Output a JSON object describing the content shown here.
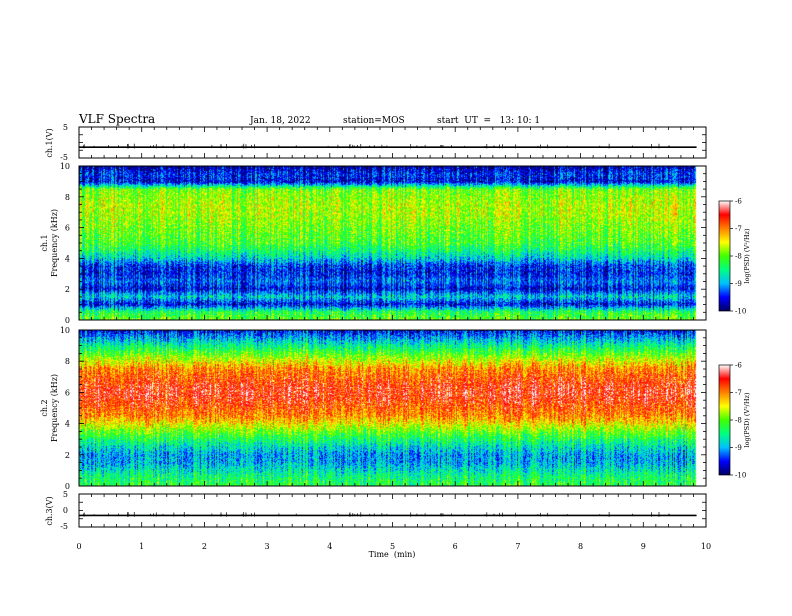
{
  "header": {
    "title": "VLF Spectra",
    "date": "Jan. 18, 2022",
    "station": "station=MOS",
    "start": "start  UT  =   13: 10: 1"
  },
  "chart_data": [
    {
      "type": "line",
      "panel": "ch1-waveform",
      "ylabel": "ch.1(V)",
      "yticks": [
        "5",
        "-5"
      ],
      "ylim": [
        -5,
        5
      ],
      "baseline_value": -1.5,
      "xlim": [
        0,
        10
      ]
    },
    {
      "type": "heatmap",
      "panel": "ch1-spectrogram",
      "ylabel_line1": "ch.1",
      "ylabel_line2": "Frequency (kHz)",
      "yticks": [
        "0",
        "2",
        "4",
        "6",
        "8",
        "10"
      ],
      "ylim": [
        0,
        10
      ],
      "xlim": [
        0,
        10
      ],
      "data_end_min": 9.85,
      "freq_profile_kHz": [
        0,
        0.5,
        1,
        1.5,
        2,
        2.5,
        3,
        3.5,
        4,
        4.5,
        5,
        5.5,
        6,
        6.5,
        7,
        7.5,
        8,
        8.5,
        9,
        9.5,
        10
      ],
      "log_psd_profile": [
        -8.0,
        -8.3,
        -9.6,
        -8.8,
        -9.6,
        -9.2,
        -9.5,
        -9.4,
        -8.8,
        -8.4,
        -8.1,
        -8.0,
        -7.9,
        -7.8,
        -7.7,
        -7.7,
        -7.8,
        -7.9,
        -9.6,
        -9.4,
        -9.8
      ],
      "colorbar": {
        "ticks": [
          "-6",
          "-7",
          "-8",
          "-9",
          "-10"
        ],
        "range": [
          -10,
          -6
        ],
        "label": "log(PSD) (V²/Hz)"
      }
    },
    {
      "type": "heatmap",
      "panel": "ch2-spectrogram",
      "ylabel_line1": "ch.2",
      "ylabel_line2": "Frequency (kHz)",
      "yticks": [
        "0",
        "2",
        "4",
        "6",
        "8",
        "10"
      ],
      "ylim": [
        0,
        10
      ],
      "xlim": [
        0,
        10
      ],
      "data_end_min": 9.85,
      "freq_profile_kHz": [
        0,
        0.5,
        1,
        1.5,
        2,
        2.5,
        3,
        3.5,
        4,
        4.5,
        5,
        5.5,
        6,
        6.5,
        7,
        7.5,
        8,
        8.5,
        9,
        9.5,
        10
      ],
      "log_psd_profile": [
        -8.2,
        -8.4,
        -8.7,
        -9.0,
        -9.0,
        -8.7,
        -8.3,
        -7.9,
        -7.4,
        -7.0,
        -6.8,
        -6.6,
        -6.5,
        -6.6,
        -6.8,
        -7.0,
        -7.5,
        -8.0,
        -8.5,
        -9.0,
        -9.5
      ],
      "colorbar": {
        "ticks": [
          "-6",
          "-7",
          "-8",
          "-9",
          "-10"
        ],
        "range": [
          -10,
          -6
        ],
        "label": "log(PSD) (V²/Hz)"
      }
    },
    {
      "type": "line",
      "panel": "ch3-waveform",
      "ylabel": "ch.3(V)",
      "yticks": [
        "5",
        "0",
        "-5"
      ],
      "ylim": [
        -5,
        5
      ],
      "baseline_value": -1.5,
      "xlim": [
        0,
        10
      ],
      "xlabel": "Time  (min)",
      "xticks": [
        "0",
        "1",
        "2",
        "3",
        "4",
        "5",
        "6",
        "7",
        "8",
        "9",
        "10"
      ]
    }
  ],
  "colors": {
    "colormap": [
      "#000060",
      "#0000ff",
      "#00c0ff",
      "#00ff80",
      "#40ff00",
      "#ffff00",
      "#ff8000",
      "#ff0000",
      "#ffffff"
    ]
  }
}
